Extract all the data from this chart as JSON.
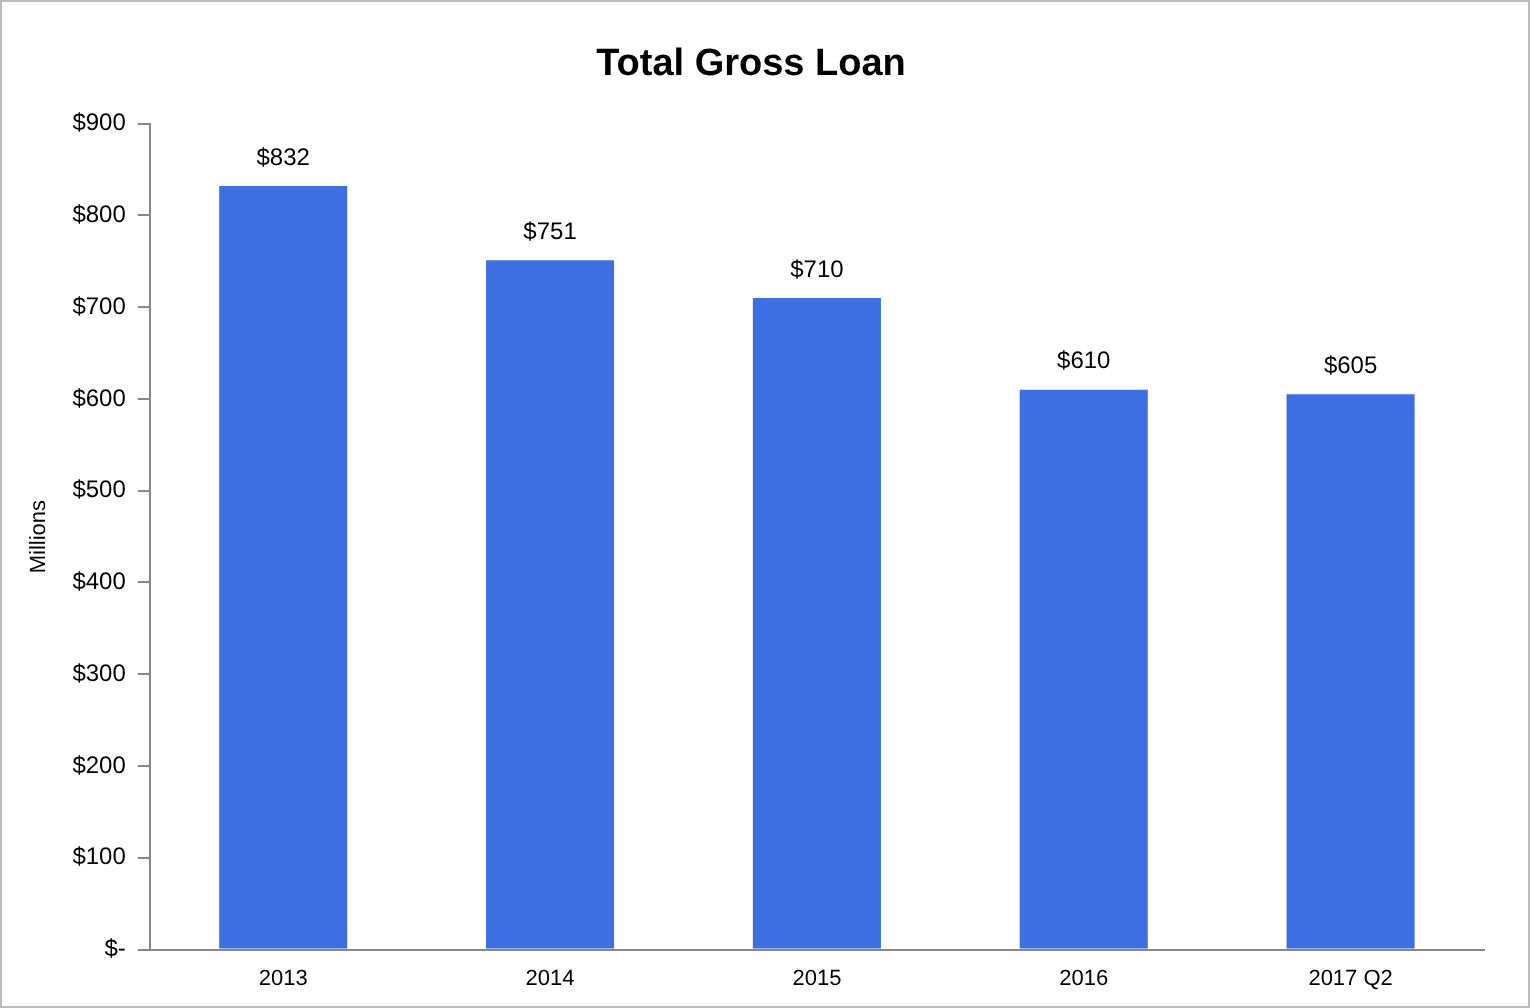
{
  "chart_data": {
    "type": "bar",
    "title": "Total Gross Loan",
    "ylabel": "Millions",
    "categories": [
      "2013",
      "2014",
      "2015",
      "2016",
      "2017 Q2"
    ],
    "values": [
      832,
      751,
      710,
      610,
      605
    ],
    "value_labels": [
      "$832",
      "$751",
      "$710",
      "$610",
      "$605"
    ],
    "color": "#3d6fe3",
    "ylim": [
      0,
      900
    ],
    "yticks": [
      {
        "value": 0,
        "label": "$-"
      },
      {
        "value": 100,
        "label": "$100"
      },
      {
        "value": 200,
        "label": "$200"
      },
      {
        "value": 300,
        "label": "$300"
      },
      {
        "value": 400,
        "label": "$400"
      },
      {
        "value": 500,
        "label": "$500"
      },
      {
        "value": 600,
        "label": "$600"
      },
      {
        "value": 700,
        "label": "$700"
      },
      {
        "value": 800,
        "label": "$800"
      },
      {
        "value": 900,
        "label": "$900"
      }
    ],
    "grid": false,
    "legend": false
  }
}
